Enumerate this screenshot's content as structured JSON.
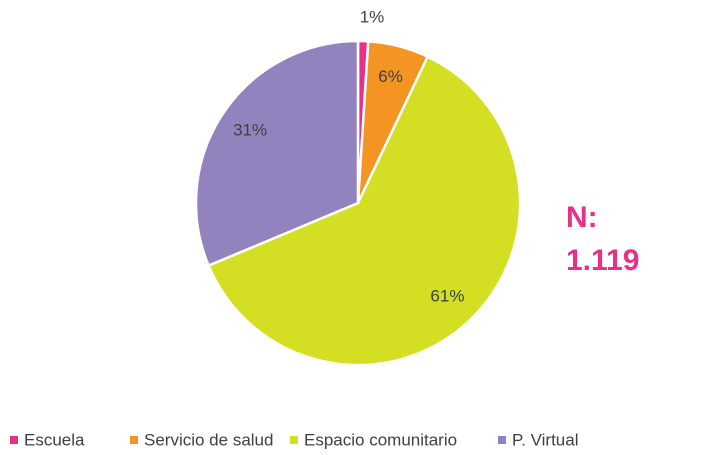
{
  "chart_data": {
    "type": "pie",
    "categories": [
      "Escuela",
      "Servicio de salud",
      "Espacio comunitario",
      "P. Virtual"
    ],
    "values": [
      1,
      6,
      61,
      31
    ],
    "value_labels": [
      "1%",
      "6%",
      "61%",
      "31%"
    ],
    "colors": [
      "#e8308a",
      "#f39423",
      "#d4de23",
      "#9283bf"
    ],
    "annotation": [
      "N:",
      "1.119"
    ],
    "legend": "bottom"
  }
}
